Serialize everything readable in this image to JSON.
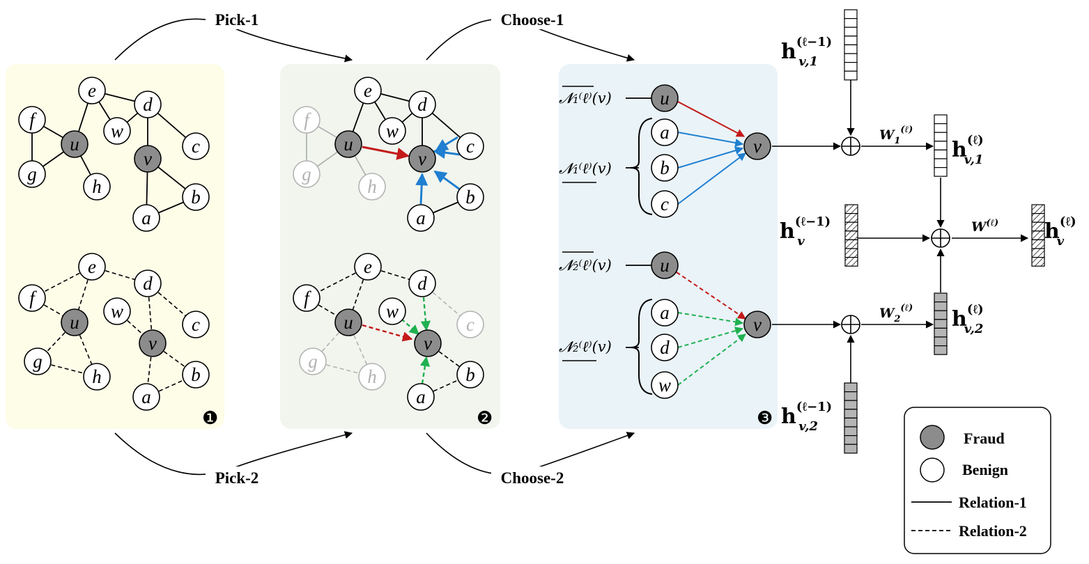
{
  "arrows": {
    "pick1": "Pick-1",
    "pick2": "Pick-2",
    "choose1": "Choose-1",
    "choose2": "Choose-2"
  },
  "badges": {
    "one": "❶",
    "two": "❷",
    "three": "❸"
  },
  "nodes": {
    "u": "u",
    "v": "v",
    "a": "a",
    "b": "b",
    "c": "c",
    "d": "d",
    "e": "e",
    "f": "f",
    "g": "g",
    "h": "h",
    "w": "w"
  },
  "aggregation": {
    "nbr_fraud_1": "𝓝₁⁽ℓ⁾(v)",
    "nbr_benign_1": "𝓝₁⁽ℓ⁾(v)",
    "nbr_fraud_2": "𝓝₂⁽ℓ⁾(v)",
    "nbr_benign_2": "𝓝₂⁽ℓ⁾(v)"
  },
  "embeddings": {
    "h_v1_prev": "h",
    "h_v1_prev_sup": "(ℓ−1)",
    "h_v1_prev_sub": "v,1",
    "h_v1": "h",
    "h_v1_sup": "(ℓ)",
    "h_v1_sub": "v,1",
    "h_v_prev": "h",
    "h_v_prev_sup": "(ℓ−1)",
    "h_v_prev_sub": "v",
    "h_v2": "h",
    "h_v2_sup": "(ℓ)",
    "h_v2_sub": "v,2",
    "h_v2_prev": "h",
    "h_v2_prev_sup": "(ℓ−1)",
    "h_v2_prev_sub": "v,2",
    "h_v": "h",
    "h_v_sup": "(ℓ)",
    "h_v_sub": "v",
    "w1": "W",
    "w1_sub": "1",
    "w1_sup": "(ℓ)",
    "w2": "W",
    "w2_sub": "2",
    "w2_sup": "(ℓ)",
    "w": "W",
    "w_sup": "(ℓ)"
  },
  "legend": {
    "fraud": "Fraud",
    "benign": "Benign",
    "relation1": "Relation-1",
    "relation2": "Relation-2"
  },
  "colors": {
    "panel1": "#fdfde8",
    "panel2": "#f1f5ee",
    "panel3": "#eaf3f8",
    "fraud": "#8c8c8c",
    "benign": "#ffffff",
    "red": "#c41a1a",
    "blue": "#1f7fd0",
    "green": "#1fb050",
    "faded": "#b3b3b3"
  }
}
